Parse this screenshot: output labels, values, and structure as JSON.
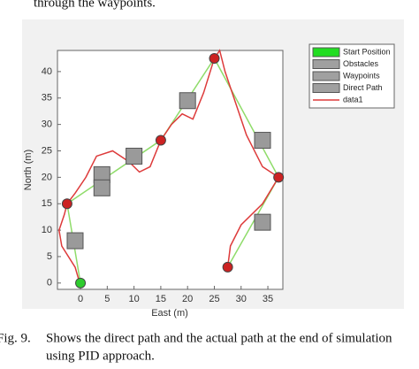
{
  "top_text": "through the waypoints.",
  "chart_data": {
    "type": "line",
    "xlabel": "East (m)",
    "ylabel": "North (m)",
    "xlim": [
      -4.3,
      37.8
    ],
    "ylim": [
      -1.2,
      44
    ],
    "xticks": [
      0,
      5,
      10,
      15,
      20,
      25,
      30,
      35
    ],
    "yticks": [
      0,
      5,
      10,
      15,
      20,
      25,
      30,
      35,
      40
    ],
    "series": [
      {
        "name": "Start Position",
        "kind": "point",
        "color": "#2ecc2e",
        "legend_color": "#22dd22",
        "x": [
          0
        ],
        "values": [
          0
        ]
      },
      {
        "name": "Obstacles",
        "kind": "square",
        "color": "#9a9a9a",
        "legend_color": "#a0a0a0",
        "x": [
          -1,
          4,
          4,
          10,
          20,
          34,
          34
        ],
        "values": [
          8,
          20.5,
          18,
          24,
          34.5,
          27,
          11.5
        ]
      },
      {
        "name": "Waypoints",
        "kind": "point",
        "color": "#cc2222",
        "legend_color": "#a0a0a0",
        "x": [
          -2.5,
          15,
          25,
          37,
          27.5
        ],
        "values": [
          15,
          27,
          42.5,
          20,
          3
        ]
      },
      {
        "name": "Direct Path",
        "kind": "line",
        "color": "#8fdc6a",
        "legend_color": "#a0a0a0",
        "x": [
          0,
          -2.5,
          15,
          25,
          37,
          27.5
        ],
        "values": [
          0,
          15,
          27,
          42.5,
          20,
          3
        ]
      },
      {
        "name": "data1",
        "kind": "line",
        "color": "#dd3a3a",
        "legend_color": "#dd3a3a",
        "x": [
          0,
          -1,
          -3.5,
          -4,
          -3,
          -2.5,
          -1,
          1,
          3,
          6,
          9,
          11,
          13,
          15,
          17,
          19,
          21,
          23,
          25,
          26,
          27,
          29,
          31,
          34,
          37,
          34,
          30,
          28,
          27.5
        ],
        "values": [
          -0.5,
          3,
          7,
          10,
          13,
          15,
          17,
          20,
          24,
          25,
          23,
          21,
          22,
          27,
          30,
          32,
          31,
          36,
          42.5,
          44,
          40,
          34,
          28,
          22,
          20,
          15,
          11,
          7,
          3
        ]
      }
    ]
  },
  "caption": {
    "label": "Fig. 9.",
    "lines": [
      "Shows the direct path and the actual path at the end of simulation",
      "using PID approach."
    ]
  }
}
